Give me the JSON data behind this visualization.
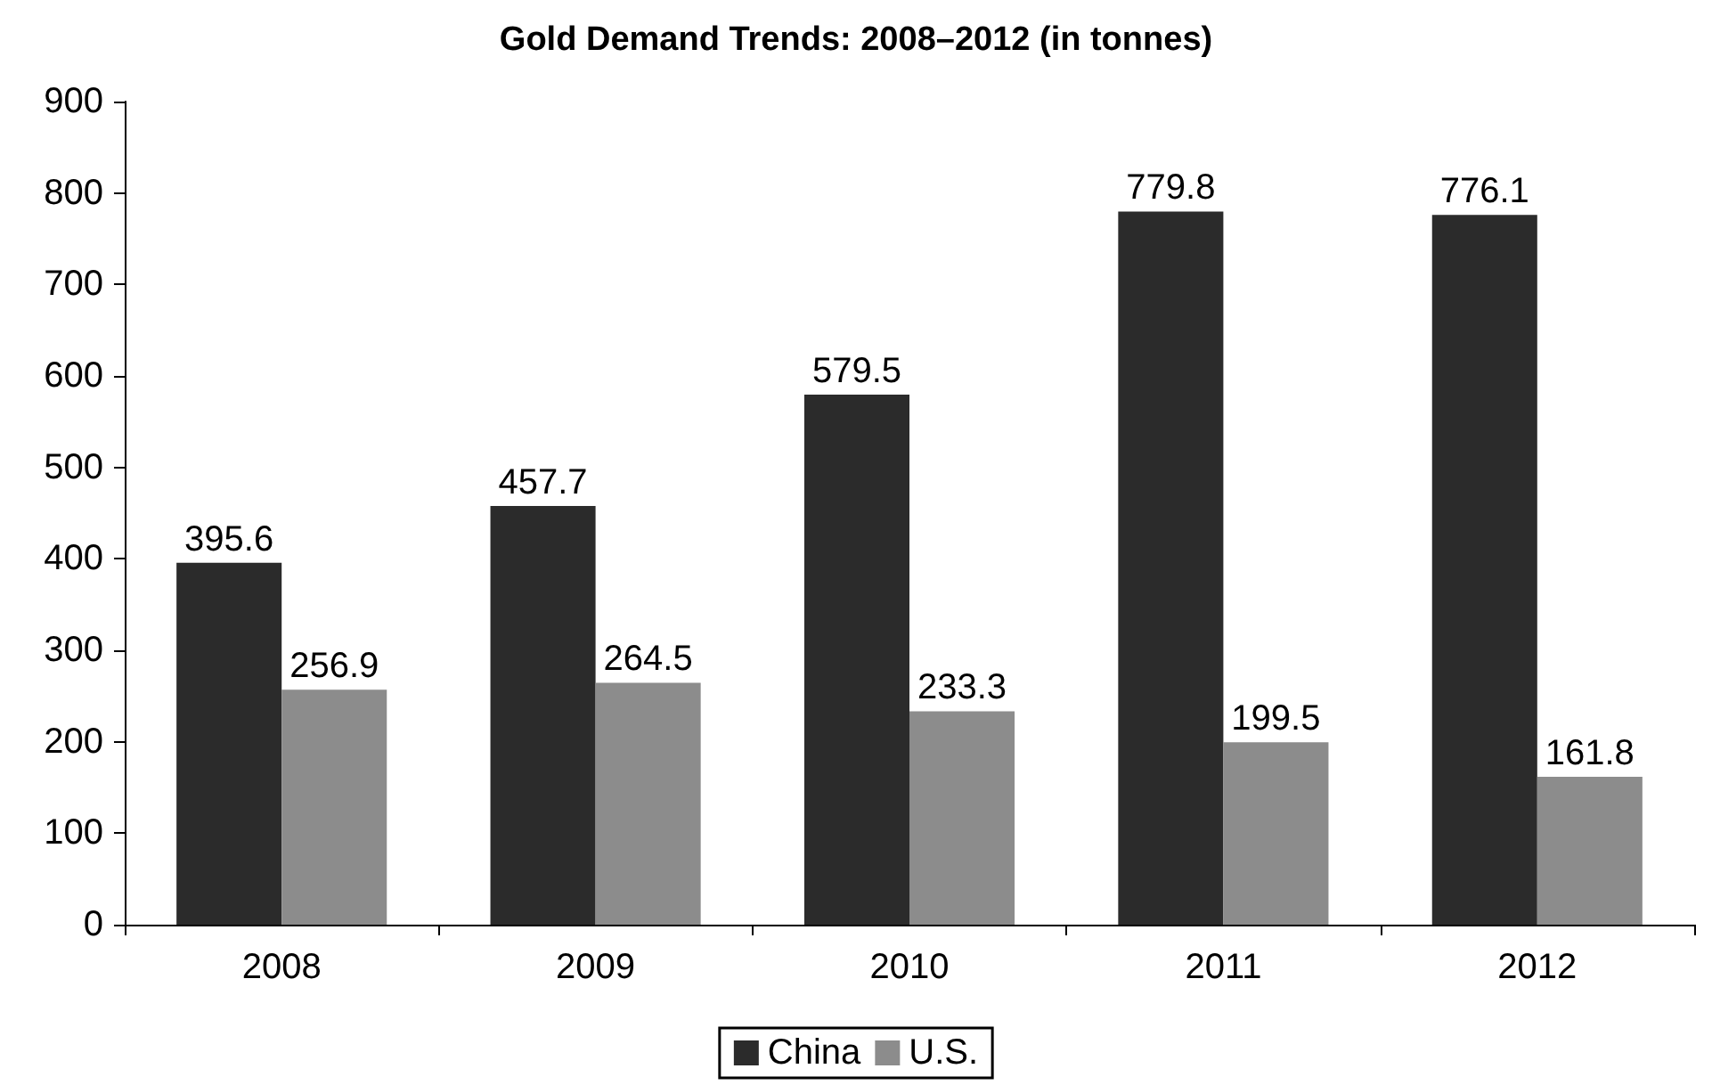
{
  "chart_data": {
    "type": "bar",
    "title": "Gold Demand Trends: 2008–2012 (in tonnes)",
    "categories": [
      "2008",
      "2009",
      "2010",
      "2011",
      "2012"
    ],
    "series": [
      {
        "name": "China",
        "color": "#2b2b2b",
        "values": [
          395.6,
          457.7,
          579.5,
          779.8,
          776.1
        ]
      },
      {
        "name": "U.S.",
        "color": "#8c8c8c",
        "values": [
          256.9,
          264.5,
          233.3,
          199.5,
          161.8
        ]
      }
    ],
    "ylim": [
      0,
      900
    ],
    "yticks": [
      0,
      100,
      200,
      300,
      400,
      500,
      600,
      700,
      800,
      900
    ],
    "data_labels": true,
    "legend": "bottom",
    "grid": false
  }
}
